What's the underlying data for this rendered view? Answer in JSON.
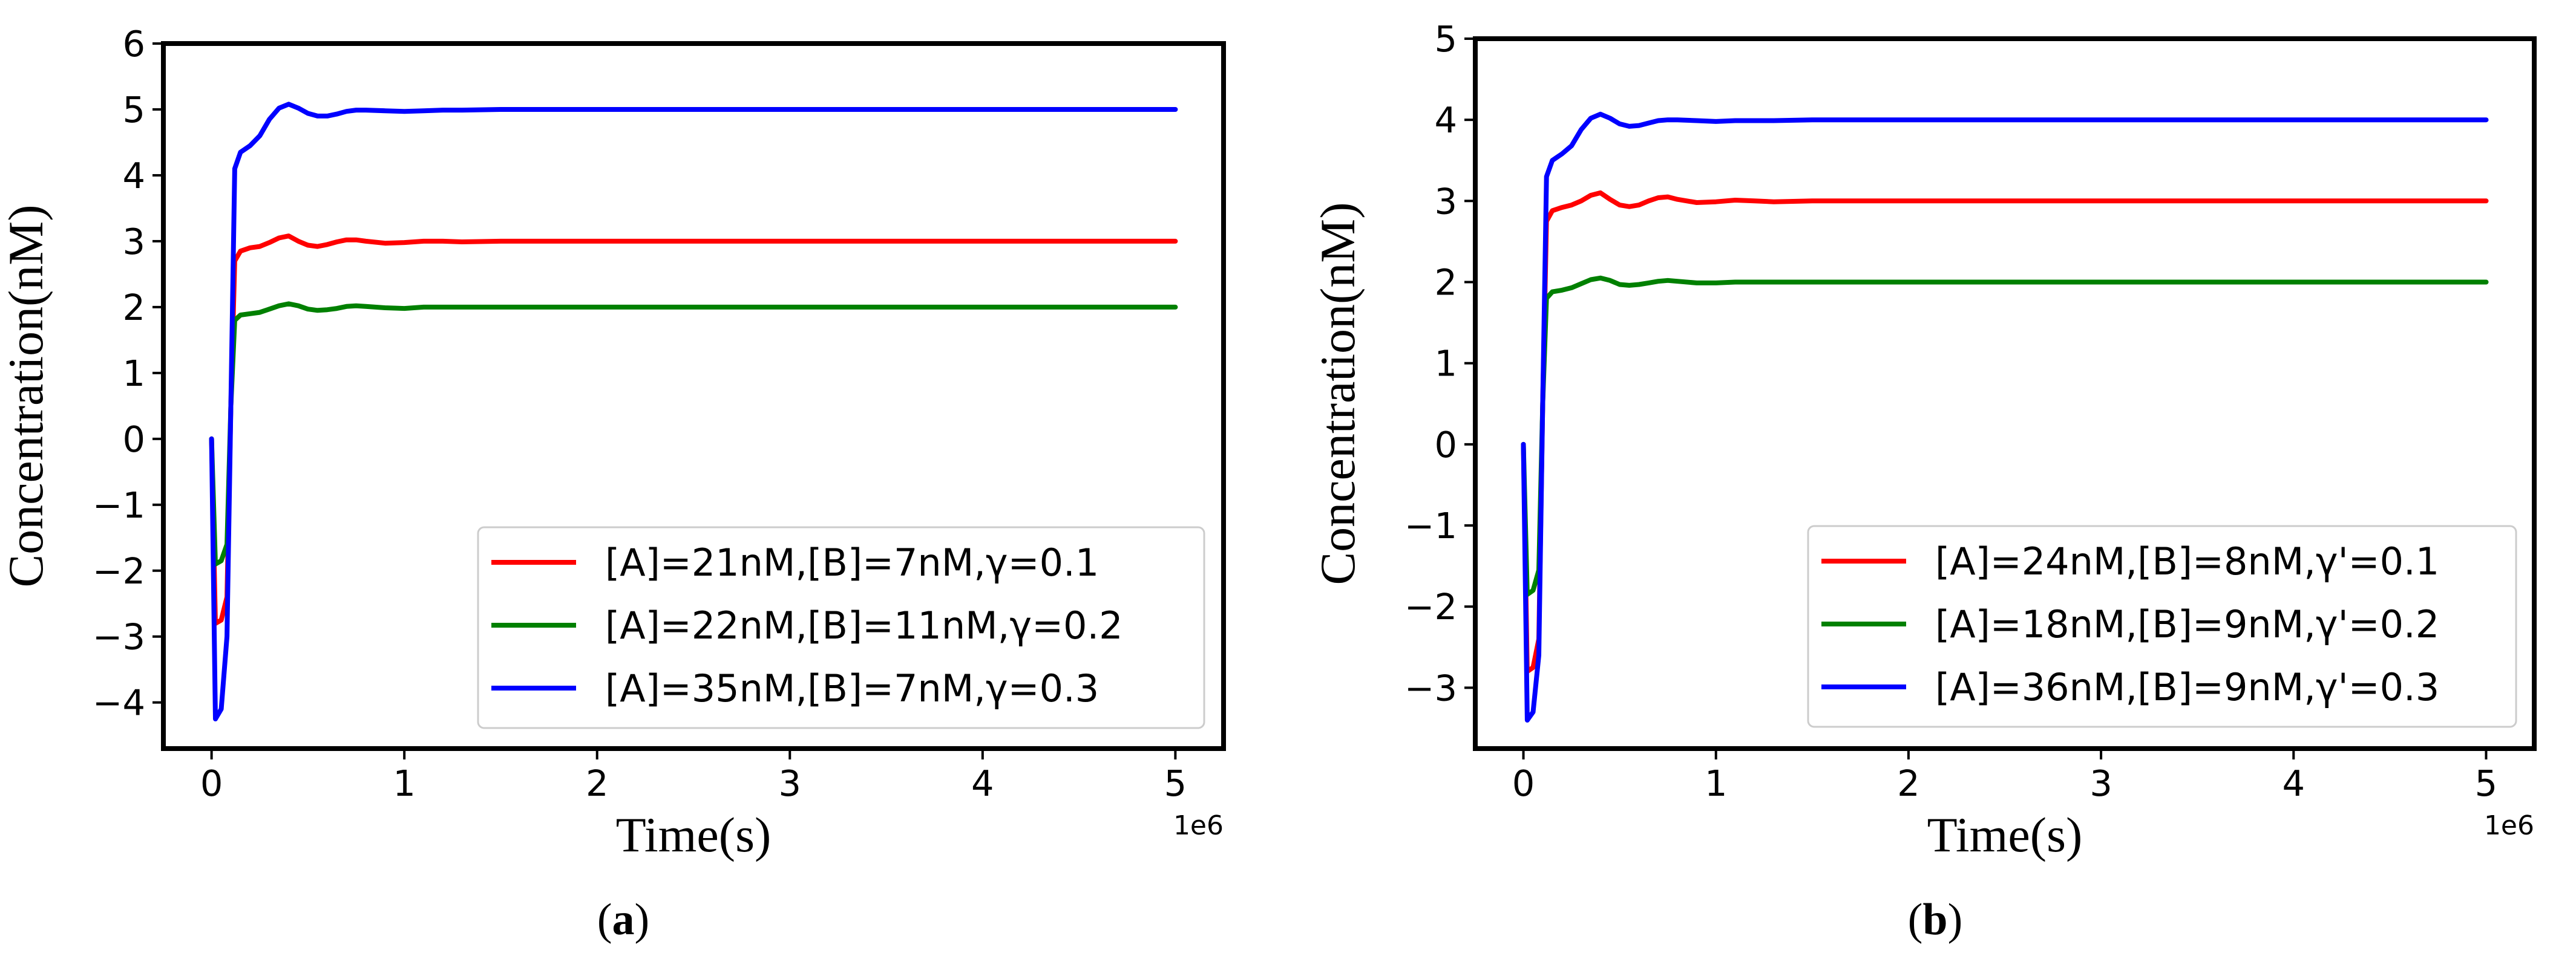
{
  "chart_data": [
    {
      "type": "line",
      "caption_letter": "a",
      "xlabel": "Time(s)",
      "ylabel": "Concentration(nM)",
      "x_scale_label": "1e6",
      "xlim": [
        -0.25,
        5.25
      ],
      "ylim": [
        -4.7,
        6
      ],
      "xticks": [
        0,
        1,
        2,
        3,
        4,
        5
      ],
      "xtick_labels": [
        "0",
        "1",
        "2",
        "3",
        "4",
        "5"
      ],
      "yticks": [
        -4,
        -3,
        -2,
        -1,
        0,
        1,
        2,
        3,
        4,
        5,
        6
      ],
      "ytick_labels": [
        "−4",
        "−3",
        "−2",
        "−1",
        "0",
        "1",
        "2",
        "3",
        "4",
        "5",
        "6"
      ],
      "legend_position": "lower-right",
      "series": [
        {
          "name": "[A]=21nM,[B]=7nM,γ=0.1",
          "color": "#ff0000",
          "x": [
            0,
            0.02,
            0.05,
            0.08,
            0.1,
            0.12,
            0.15,
            0.2,
            0.25,
            0.3,
            0.35,
            0.4,
            0.45,
            0.5,
            0.55,
            0.6,
            0.65,
            0.7,
            0.75,
            0.8,
            0.9,
            1.0,
            1.1,
            1.2,
            1.3,
            1.5,
            1.7,
            2.0,
            3.0,
            4.0,
            5.0
          ],
          "y": [
            0,
            -2.8,
            -2.75,
            -2.4,
            0.5,
            2.7,
            2.85,
            2.9,
            2.92,
            2.98,
            3.05,
            3.08,
            3.0,
            2.94,
            2.92,
            2.95,
            2.99,
            3.02,
            3.02,
            3.0,
            2.97,
            2.98,
            3.0,
            3.0,
            2.99,
            3.0,
            3.0,
            3.0,
            3.0,
            3.0,
            3.0
          ]
        },
        {
          "name": "[A]=22nM,[B]=11nM,γ=0.2",
          "color": "#008000",
          "x": [
            0,
            0.02,
            0.05,
            0.08,
            0.1,
            0.12,
            0.15,
            0.2,
            0.25,
            0.3,
            0.35,
            0.4,
            0.45,
            0.5,
            0.55,
            0.6,
            0.65,
            0.7,
            0.75,
            0.8,
            0.9,
            1.0,
            1.1,
            1.2,
            1.3,
            1.5,
            1.7,
            2.0,
            3.0,
            4.0,
            5.0
          ],
          "y": [
            0,
            -1.9,
            -1.85,
            -1.6,
            0.5,
            1.8,
            1.88,
            1.9,
            1.92,
            1.97,
            2.02,
            2.05,
            2.02,
            1.97,
            1.95,
            1.96,
            1.98,
            2.01,
            2.02,
            2.01,
            1.99,
            1.98,
            2.0,
            2.0,
            2.0,
            2.0,
            2.0,
            2.0,
            2.0,
            2.0,
            2.0
          ]
        },
        {
          "name": "[A]=35nM,[B]=7nM,γ=0.3",
          "color": "#0000ff",
          "x": [
            0,
            0.02,
            0.05,
            0.08,
            0.1,
            0.12,
            0.15,
            0.2,
            0.25,
            0.3,
            0.35,
            0.4,
            0.45,
            0.5,
            0.55,
            0.6,
            0.65,
            0.7,
            0.75,
            0.8,
            0.9,
            1.0,
            1.1,
            1.2,
            1.3,
            1.5,
            1.7,
            2.0,
            3.0,
            4.0,
            5.0
          ],
          "y": [
            0,
            -4.25,
            -4.1,
            -3.0,
            0.5,
            4.1,
            4.35,
            4.45,
            4.6,
            4.85,
            5.02,
            5.08,
            5.02,
            4.94,
            4.9,
            4.9,
            4.93,
            4.97,
            4.99,
            4.99,
            4.98,
            4.97,
            4.98,
            4.99,
            4.99,
            5.0,
            5.0,
            5.0,
            5.0,
            5.0,
            5.0
          ]
        }
      ]
    },
    {
      "type": "line",
      "caption_letter": "b",
      "xlabel": "Time(s)",
      "ylabel": "Concentration(nM)",
      "x_scale_label": "1e6",
      "xlim": [
        -0.25,
        5.25
      ],
      "ylim": [
        -3.75,
        5
      ],
      "xticks": [
        0,
        1,
        2,
        3,
        4,
        5
      ],
      "xtick_labels": [
        "0",
        "1",
        "2",
        "3",
        "4",
        "5"
      ],
      "yticks": [
        -3,
        -2,
        -1,
        0,
        1,
        2,
        3,
        4,
        5
      ],
      "ytick_labels": [
        "−3",
        "−2",
        "−1",
        "0",
        "1",
        "2",
        "3",
        "4",
        "5"
      ],
      "legend_position": "lower-right",
      "series": [
        {
          "name": "[A]=24nM,[B]=8nM,γ'=0.1",
          "color": "#ff0000",
          "x": [
            0,
            0.02,
            0.05,
            0.08,
            0.1,
            0.12,
            0.15,
            0.2,
            0.25,
            0.3,
            0.35,
            0.4,
            0.45,
            0.5,
            0.55,
            0.6,
            0.65,
            0.7,
            0.75,
            0.8,
            0.9,
            1.0,
            1.1,
            1.2,
            1.3,
            1.5,
            1.7,
            2.0,
            3.0,
            4.0,
            5.0
          ],
          "y": [
            0,
            -2.8,
            -2.75,
            -2.4,
            0.5,
            2.75,
            2.88,
            2.92,
            2.95,
            3.0,
            3.07,
            3.1,
            3.02,
            2.95,
            2.93,
            2.95,
            3.0,
            3.04,
            3.05,
            3.02,
            2.98,
            2.99,
            3.01,
            3.0,
            2.99,
            3.0,
            3.0,
            3.0,
            3.0,
            3.0,
            3.0
          ]
        },
        {
          "name": "[A]=18nM,[B]=9nM,γ'=0.2",
          "color": "#008000",
          "x": [
            0,
            0.02,
            0.05,
            0.08,
            0.1,
            0.12,
            0.15,
            0.2,
            0.25,
            0.3,
            0.35,
            0.4,
            0.45,
            0.5,
            0.55,
            0.6,
            0.65,
            0.7,
            0.75,
            0.8,
            0.9,
            1.0,
            1.1,
            1.2,
            1.3,
            1.5,
            1.7,
            2.0,
            3.0,
            4.0,
            5.0
          ],
          "y": [
            0,
            -1.85,
            -1.8,
            -1.55,
            0.5,
            1.8,
            1.88,
            1.9,
            1.93,
            1.98,
            2.03,
            2.05,
            2.02,
            1.97,
            1.96,
            1.97,
            1.99,
            2.01,
            2.02,
            2.01,
            1.99,
            1.99,
            2.0,
            2.0,
            2.0,
            2.0,
            2.0,
            2.0,
            2.0,
            2.0,
            2.0
          ]
        },
        {
          "name": "[A]=36nM,[B]=9nM,γ'=0.3",
          "color": "#0000ff",
          "x": [
            0,
            0.02,
            0.05,
            0.08,
            0.1,
            0.12,
            0.15,
            0.2,
            0.25,
            0.3,
            0.35,
            0.4,
            0.45,
            0.5,
            0.55,
            0.6,
            0.65,
            0.7,
            0.75,
            0.8,
            0.9,
            1.0,
            1.1,
            1.2,
            1.3,
            1.5,
            1.7,
            2.0,
            3.0,
            4.0,
            5.0
          ],
          "y": [
            0,
            -3.4,
            -3.3,
            -2.6,
            0.5,
            3.3,
            3.5,
            3.58,
            3.68,
            3.88,
            4.02,
            4.07,
            4.02,
            3.95,
            3.92,
            3.93,
            3.96,
            3.99,
            4.0,
            4.0,
            3.99,
            3.98,
            3.99,
            3.99,
            3.99,
            4.0,
            4.0,
            4.0,
            4.0,
            4.0,
            4.0
          ]
        }
      ]
    }
  ]
}
